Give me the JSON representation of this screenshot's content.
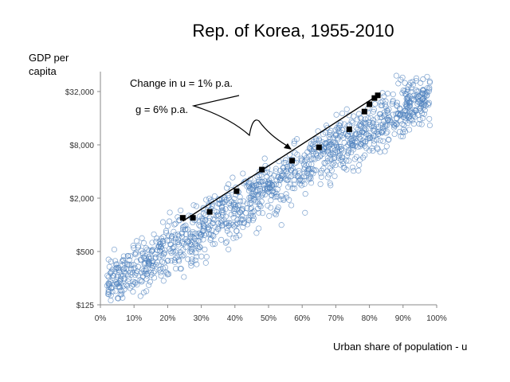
{
  "chart_data": {
    "type": "scatter",
    "title": "Rep. of Korea, 1955-2010",
    "ylabel": "GDP per capita",
    "xlabel": "Urban share of population - u",
    "y_scale": "log2",
    "xlim": [
      0,
      100
    ],
    "ylim": [
      125,
      64000
    ],
    "x_ticks": [
      "0%",
      "10%",
      "20%",
      "30%",
      "40%",
      "50%",
      "60%",
      "70%",
      "80%",
      "90%",
      "100%"
    ],
    "y_ticks": [
      {
        "label": "$125",
        "value": 125
      },
      {
        "label": "$500",
        "value": 500
      },
      {
        "label": "$2,000",
        "value": 2000
      },
      {
        "label": "$8,000",
        "value": 8000
      },
      {
        "label": "$32,000",
        "value": 32000
      }
    ],
    "colors": {
      "background_points": "#4f81bd",
      "korea_points": "#000000",
      "trend": "#000000"
    },
    "series": [
      {
        "name": "Rep. of Korea",
        "x": [
          24.5,
          27.5,
          32.5,
          40.5,
          48,
          57,
          65,
          74,
          78.5,
          80,
          81.5,
          82.5
        ],
        "y": [
          1200,
          1200,
          1400,
          2400,
          4200,
          5300,
          7500,
          12000,
          19000,
          23000,
          27000,
          29000
        ]
      }
    ],
    "trend_line": {
      "x": [
        24.5,
        82.5
      ],
      "y": [
        1100,
        29000
      ]
    },
    "annotations": [
      {
        "text": "Change in u = 1% p.a."
      },
      {
        "text": "g = 6% p.a."
      }
    ]
  }
}
